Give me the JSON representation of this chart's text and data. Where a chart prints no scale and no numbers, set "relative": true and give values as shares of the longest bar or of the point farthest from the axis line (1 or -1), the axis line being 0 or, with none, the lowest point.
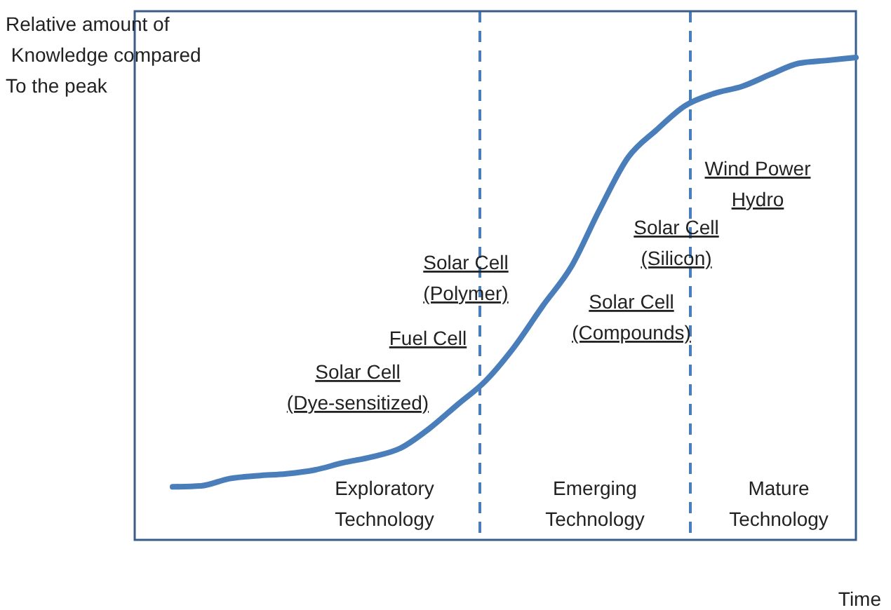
{
  "chart_data": {
    "type": "line",
    "relative": true,
    "xlabel": "Time",
    "ylabel": "Relative amount of\n Knowledge compared\nTo the peak",
    "categories": [
      null,
      null,
      null,
      null,
      null,
      null,
      null,
      null,
      null,
      null,
      null,
      null,
      null,
      null,
      null,
      null,
      null,
      null,
      null,
      null,
      null,
      null,
      null,
      null,
      null
    ],
    "series": [
      {
        "color": "#4a7ebb",
        "values": [
          0.11,
          0.112,
          0.127,
          0.133,
          0.137,
          0.145,
          0.16,
          0.172,
          0.19,
          0.23,
          0.28,
          0.33,
          0.4,
          0.485,
          0.566,
          0.685,
          0.793,
          0.85,
          0.9,
          0.925,
          0.94,
          0.965,
          0.988,
          0.994,
          1
        ]
      }
    ],
    "annotations": [
      "Solar Cell\n(Dye-sensitized)",
      "Fuel Cell",
      "Solar Cell\n(Polymer)",
      "Solar Cell\n(Compounds)",
      "Solar Cell\n(Silicon)",
      "Wind Power\nHydro",
      "Exploratory\nTechnology",
      "Emerging\nTechnology",
      "Mature\nTechnology"
    ],
    "marker": "none",
    "line_style": "solid"
  }
}
